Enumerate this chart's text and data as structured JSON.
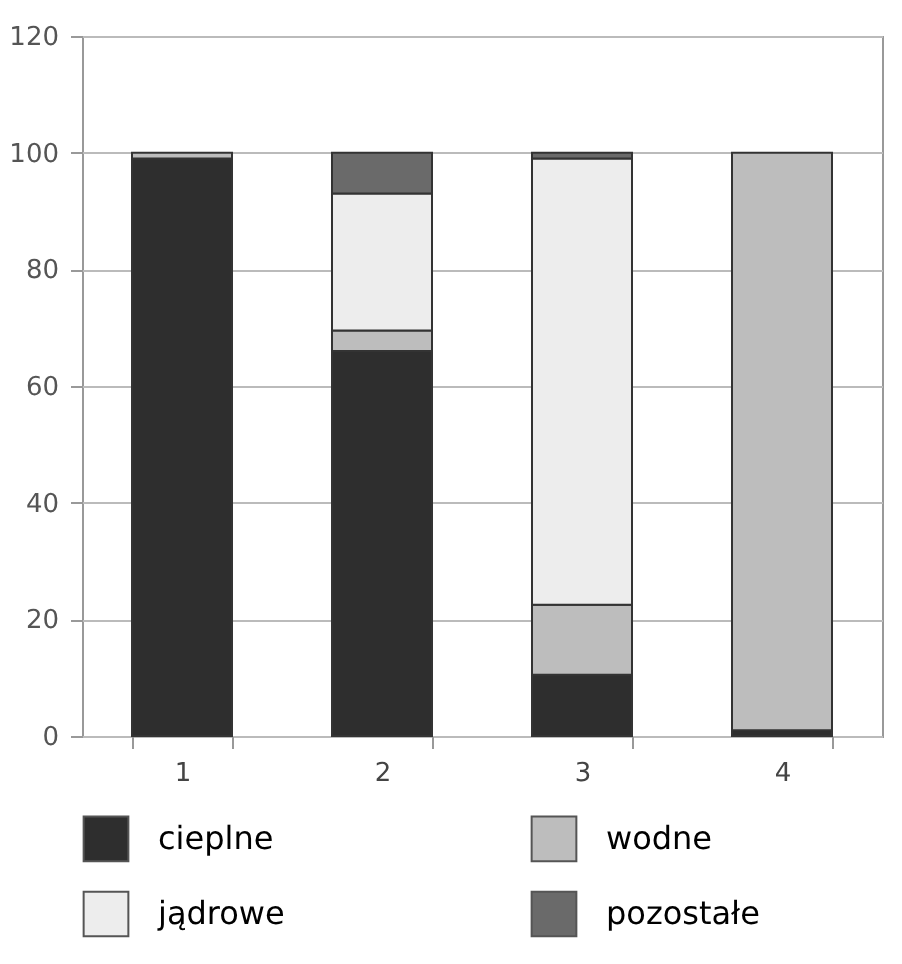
{
  "chart_data": {
    "type": "bar",
    "stacked": true,
    "categories": [
      "1",
      "2",
      "3",
      "4"
    ],
    "series": [
      {
        "name": "cieplne",
        "color": "#2e2e2e",
        "values": [
          99,
          66,
          10.5,
          1
        ]
      },
      {
        "name": "wodne",
        "color": "#bdbdbd",
        "values": [
          1,
          3.5,
          12,
          99
        ]
      },
      {
        "name": "jądrowe",
        "color": "#ededed",
        "values": [
          null,
          23.5,
          76.5,
          null
        ]
      },
      {
        "name": "pozostałe",
        "color": "#6a6a6a",
        "values": [
          null,
          7,
          1,
          null
        ]
      }
    ],
    "ylim": [
      0,
      120
    ],
    "yticks": [
      0,
      20,
      40,
      60,
      80,
      100,
      120
    ],
    "grid": "y",
    "legend": "bottom"
  }
}
